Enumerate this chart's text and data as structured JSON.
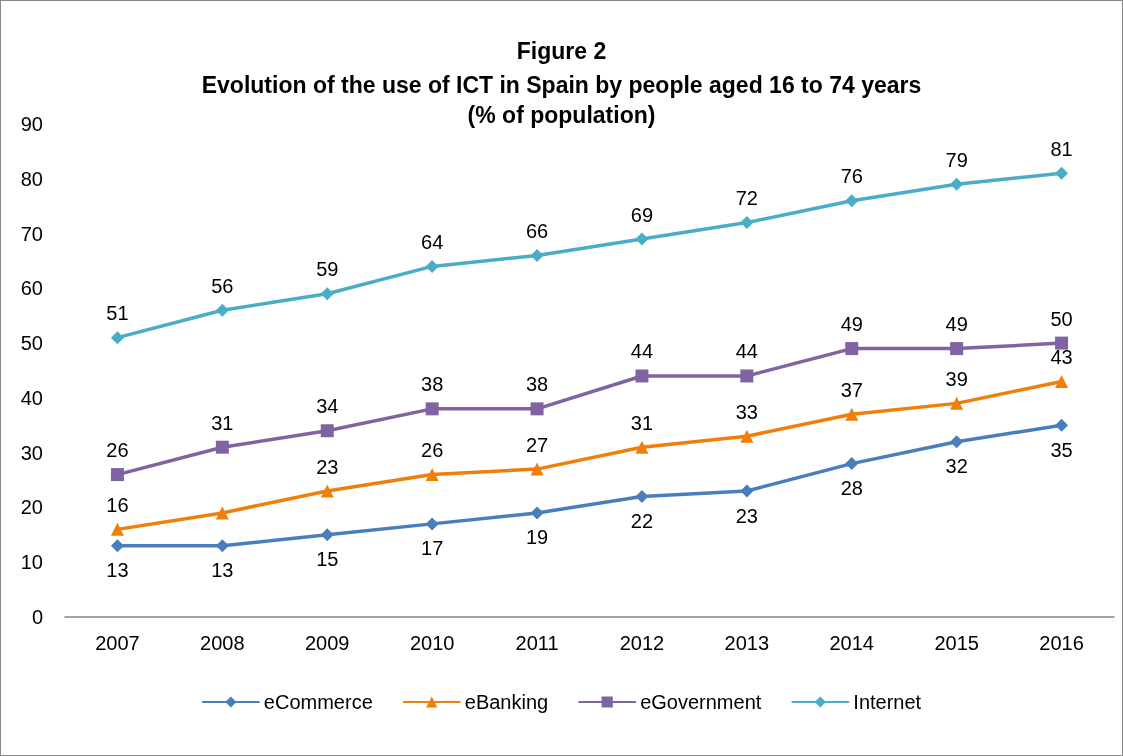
{
  "chart_data": {
    "type": "line",
    "title": "Figure 2",
    "subtitle": "Evolution of the use of ICT in Spain by people aged 16 to 74 years\n(% of population)",
    "categories": [
      "2007",
      "2008",
      "2009",
      "2010",
      "2011",
      "2012",
      "2013",
      "2014",
      "2015",
      "2016"
    ],
    "series": [
      {
        "name": "eCommerce",
        "color": "#4a7ebb",
        "marker": "diamond",
        "values": [
          13,
          13,
          15,
          17,
          19,
          22,
          23,
          28,
          32,
          35
        ],
        "value_labels": [
          "13",
          "13",
          "15",
          "17",
          "19",
          "22",
          "23",
          "28",
          "32",
          "35"
        ]
      },
      {
        "name": "eBanking",
        "color": "#f07f09",
        "marker": "triangle",
        "values": [
          16,
          19,
          23,
          26,
          27,
          31,
          33,
          37,
          39,
          43
        ],
        "value_labels": [
          "16",
          null,
          "23",
          "26",
          "27",
          "31",
          "33",
          "37",
          "39",
          "43"
        ]
      },
      {
        "name": "eGovernment",
        "color": "#8064a2",
        "marker": "square",
        "values": [
          26,
          31,
          34,
          38,
          38,
          44,
          44,
          49,
          49,
          50
        ],
        "value_labels": [
          "26",
          "31",
          "34",
          "38",
          "38",
          "44",
          "44",
          "49",
          "49",
          "50"
        ]
      },
      {
        "name": "Internet",
        "color": "#4bacc6",
        "marker": "diamond",
        "values": [
          51,
          56,
          59,
          64,
          66,
          69,
          72,
          76,
          79,
          81
        ],
        "value_labels": [
          "51",
          "56",
          "59",
          "64",
          "66",
          "69",
          "72",
          "76",
          "79",
          "81"
        ]
      }
    ],
    "ylim": [
      0,
      90
    ],
    "yticks": [
      0,
      10,
      20,
      30,
      40,
      50,
      60,
      70,
      80,
      90
    ],
    "grid": false,
    "legend": "bottom",
    "line_style": "solid"
  }
}
